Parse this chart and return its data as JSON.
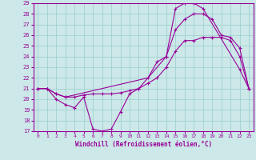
{
  "xlabel": "Windchill (Refroidissement éolien,°C)",
  "ylabel": "",
  "xlim": [
    -0.5,
    23.5
  ],
  "ylim": [
    17,
    29
  ],
  "yticks": [
    17,
    18,
    19,
    20,
    21,
    22,
    23,
    24,
    25,
    26,
    27,
    28,
    29
  ],
  "xticks": [
    0,
    1,
    2,
    3,
    4,
    5,
    6,
    7,
    8,
    9,
    10,
    11,
    12,
    13,
    14,
    15,
    16,
    17,
    18,
    19,
    20,
    21,
    22,
    23
  ],
  "background_color": "#cce8e8",
  "line_color": "#990099",
  "grid_color": "#99cccc",
  "lines": [
    {
      "x": [
        0,
        1,
        2,
        3,
        4,
        5,
        6,
        7,
        8,
        9,
        10,
        11,
        14,
        15,
        16,
        17,
        18,
        22,
        23
      ],
      "y": [
        21.0,
        21.0,
        20.0,
        19.5,
        19.2,
        20.2,
        17.2,
        17.0,
        17.2,
        18.8,
        20.5,
        21.0,
        24.0,
        28.5,
        29.0,
        29.0,
        28.5,
        22.8,
        21.0
      ]
    },
    {
      "x": [
        0,
        1,
        2,
        3,
        12,
        13,
        14,
        15,
        16,
        17,
        18,
        19,
        20,
        21,
        22,
        23
      ],
      "y": [
        21.0,
        21.0,
        20.5,
        20.2,
        22.0,
        23.5,
        24.0,
        26.5,
        27.5,
        28.0,
        28.0,
        27.5,
        26.0,
        25.8,
        24.8,
        21.0
      ]
    },
    {
      "x": [
        0,
        1,
        2,
        3,
        4,
        5,
        6,
        7,
        8,
        9,
        10,
        11,
        12,
        13,
        14,
        15,
        16,
        17,
        18,
        19,
        20,
        21,
        22,
        23
      ],
      "y": [
        21.0,
        21.0,
        20.5,
        20.2,
        20.2,
        20.4,
        20.5,
        20.5,
        20.5,
        20.6,
        20.8,
        21.0,
        21.5,
        22.0,
        23.0,
        24.5,
        25.5,
        25.5,
        25.8,
        25.8,
        25.8,
        25.5,
        24.0,
        21.0
      ]
    }
  ]
}
